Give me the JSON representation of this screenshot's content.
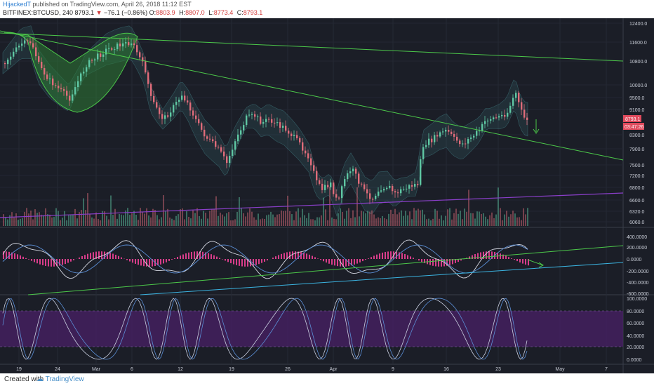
{
  "header": {
    "author": "HijackedT",
    "published": "published on TradingView.com, April 26, 2018 11:12 EST",
    "symbol": "BITFINEX:BTCUSD, 240",
    "last": "8793.1",
    "change_arrow": "▼",
    "change": "−76.1 (−0.86%)",
    "o_label": "O:",
    "o": "8803.9",
    "h_label": "H:",
    "h": "8807.0",
    "l_label": "L:",
    "l": "8773.4",
    "c_label": "C:",
    "c": "8793.1"
  },
  "footer": {
    "created_with": "Created with",
    "brand": "TradingView"
  },
  "colors": {
    "background": "#1b1e27",
    "bull": "#5fc7a3",
    "bear": "#e06c7a",
    "trend": "#4cc84a",
    "purple": "#8a3fc9",
    "cyan": "#3bb3e0",
    "rsi_band": "#4b1f6b",
    "macd_hist": "#d83d8a"
  },
  "chart_data": {
    "type": "candlestick",
    "price_axis": {
      "ticks": [
        "12400.0",
        "11600.0",
        "10800.0",
        "10000.0",
        "9500.0",
        "9100.0",
        "8300.0",
        "7900.0",
        "7500.0",
        "7200.0",
        "6800.0",
        "6600.0",
        "6320.0",
        "6060.0"
      ]
    },
    "last_price_label": "8793.1",
    "countdown_label": "03:47:26",
    "macd_axis": {
      "ticks": [
        "400.0000",
        "200.0000",
        "0.0000",
        "-200.0000",
        "-400.0000",
        "-600.0000"
      ]
    },
    "stoch_axis": {
      "ticks": [
        "100.0000",
        "80.0000",
        "60.0000",
        "40.0000",
        "20.0000",
        "0.0000"
      ]
    },
    "x_axis": {
      "ticks": [
        "19",
        "24",
        "Mar",
        "6",
        "12",
        "19",
        "26",
        "Apr",
        "9",
        "16",
        "23",
        "May",
        "7"
      ]
    }
  }
}
